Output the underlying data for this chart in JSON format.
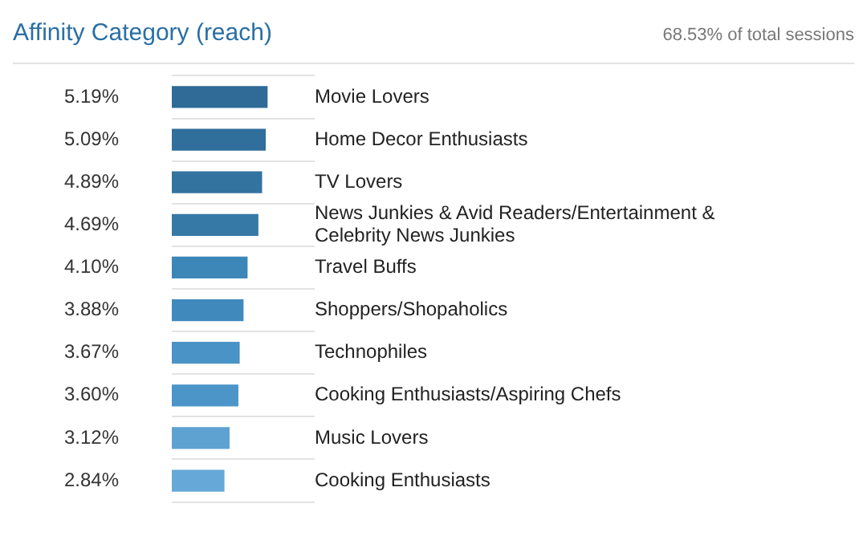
{
  "chart_data": {
    "type": "bar",
    "orientation": "horizontal",
    "title": "Affinity Category (reach)",
    "annotations": [
      "68.53% of total sessions"
    ],
    "categories": [
      "Movie Lovers",
      "Home Decor Enthusiasts",
      "TV Lovers",
      "News Junkies & Avid Readers/Entertainment & Celebrity News Junkies",
      "Travel Buffs",
      "Shoppers/Shopaholics",
      "Technophiles",
      "Cooking Enthusiasts/Aspiring Chefs",
      "Music Lovers",
      "Cooking Enthusiasts"
    ],
    "values": [
      5.19,
      5.09,
      4.89,
      4.69,
      4.1,
      3.88,
      3.67,
      3.6,
      3.12,
      2.84
    ],
    "value_labels": [
      "5.19%",
      "5.09%",
      "4.89%",
      "4.69%",
      "4.10%",
      "3.88%",
      "3.67%",
      "3.60%",
      "3.12%",
      "2.84%"
    ],
    "colors": [
      "#2f6b96",
      "#306e9b",
      "#33739f",
      "#3679a6",
      "#3d86b8",
      "#4089bd",
      "#4a93c6",
      "#4c95c8",
      "#5ea2d2",
      "#66a9d8"
    ],
    "grid": "y"
  }
}
